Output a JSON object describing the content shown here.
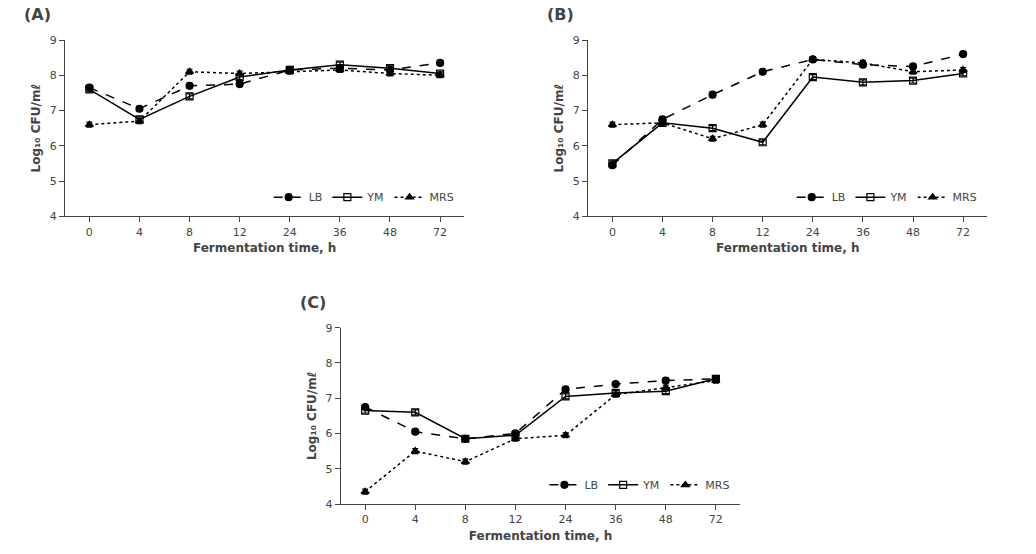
{
  "chart_data": [
    {
      "type": "line",
      "title": "(A)",
      "x_label": "Fermentation time, h",
      "y_label": "Log₁₀ CFU/mℓ",
      "categories": [
        "0",
        "4",
        "8",
        "12",
        "24",
        "36",
        "48",
        "72"
      ],
      "series": [
        {
          "name": "LB",
          "color": "black",
          "marker": "circle",
          "line_style": "dash",
          "values": [
            7.65,
            7.05,
            7.7,
            7.75,
            8.15,
            8.2,
            8.15,
            8.35
          ],
          "errors": [
            0.07,
            0.07,
            0.07,
            0.07,
            0.07,
            0.07,
            0.07,
            0.07
          ]
        },
        {
          "name": "YM",
          "color": "black",
          "marker": "square-open",
          "line_style": "solid",
          "values": [
            7.6,
            6.75,
            7.4,
            7.95,
            8.15,
            8.3,
            8.2,
            8.05
          ],
          "errors": [
            0.07,
            0.07,
            0.07,
            0.07,
            0.07,
            0.07,
            0.07,
            0.07
          ]
        },
        {
          "name": "MRS",
          "color": "black",
          "marker": "triangle-up",
          "line_style": "dot",
          "values": [
            6.6,
            6.7,
            8.1,
            8.05,
            8.1,
            8.15,
            8.05,
            8.0
          ],
          "errors": [
            0.07,
            0.07,
            0.07,
            0.07,
            0.07,
            0.07,
            0.07,
            0.07
          ]
        }
      ],
      "ylim": [
        4,
        9
      ],
      "yticks": [
        4,
        5,
        6,
        7,
        8,
        9
      ],
      "grid": false,
      "legend": "lower right"
    },
    {
      "type": "line",
      "title": "(B)",
      "x_label": "Fermentation time, h",
      "y_label": "Log₁₀ CFU/mℓ",
      "categories": [
        "0",
        "4",
        "8",
        "12",
        "24",
        "36",
        "48",
        "72"
      ],
      "series": [
        {
          "name": "LB",
          "color": "black",
          "marker": "circle",
          "line_style": "dash",
          "values": [
            5.45,
            6.75,
            7.45,
            8.1,
            8.45,
            8.3,
            8.25,
            8.6
          ],
          "errors": [
            0.07,
            0.07,
            0.07,
            0.07,
            0.07,
            0.07,
            0.07,
            0.07
          ]
        },
        {
          "name": "YM",
          "color": "black",
          "marker": "square-open",
          "line_style": "solid",
          "values": [
            5.5,
            6.65,
            6.5,
            6.1,
            7.95,
            7.8,
            7.85,
            8.05
          ],
          "errors": [
            0.07,
            0.07,
            0.07,
            0.07,
            0.07,
            0.07,
            0.07,
            0.07
          ]
        },
        {
          "name": "MRS",
          "color": "black",
          "marker": "triangle-up",
          "line_style": "dot",
          "values": [
            6.6,
            6.65,
            6.2,
            6.6,
            8.45,
            8.35,
            8.1,
            8.15
          ],
          "errors": [
            0.07,
            0.07,
            0.07,
            0.07,
            0.07,
            0.07,
            0.07,
            0.07
          ]
        }
      ],
      "ylim": [
        4,
        9
      ],
      "yticks": [
        4,
        5,
        6,
        7,
        8,
        9
      ],
      "grid": false,
      "legend": "lower right"
    },
    {
      "type": "line",
      "title": "(C)",
      "x_label": "Fermentation time, h",
      "y_label": "Log₁₀ CFU/mℓ",
      "categories": [
        "0",
        "4",
        "8",
        "12",
        "24",
        "36",
        "48",
        "72"
      ],
      "series": [
        {
          "name": "LB",
          "color": "black",
          "marker": "circle",
          "line_style": "dash",
          "values": [
            6.75,
            6.05,
            5.85,
            6.0,
            7.25,
            7.4,
            7.5,
            7.55
          ],
          "errors": [
            0.07,
            0.07,
            0.07,
            0.07,
            0.07,
            0.07,
            0.07,
            0.07
          ]
        },
        {
          "name": "YM",
          "color": "black",
          "marker": "square-open",
          "line_style": "solid",
          "values": [
            6.65,
            6.6,
            5.85,
            5.95,
            7.05,
            7.15,
            7.2,
            7.55
          ],
          "errors": [
            0.07,
            0.07,
            0.07,
            0.07,
            0.07,
            0.07,
            0.07,
            0.07
          ]
        },
        {
          "name": "MRS",
          "color": "black",
          "marker": "triangle-up",
          "line_style": "dot",
          "values": [
            4.35,
            5.5,
            5.2,
            5.85,
            5.95,
            7.1,
            7.3,
            7.5
          ],
          "errors": [
            0.07,
            0.07,
            0.07,
            0.07,
            0.07,
            0.07,
            0.07,
            0.07
          ]
        }
      ],
      "ylim": [
        4,
        9
      ],
      "yticks": [
        4,
        5,
        6,
        7,
        8,
        9
      ],
      "grid": false,
      "legend": "lower right"
    }
  ]
}
